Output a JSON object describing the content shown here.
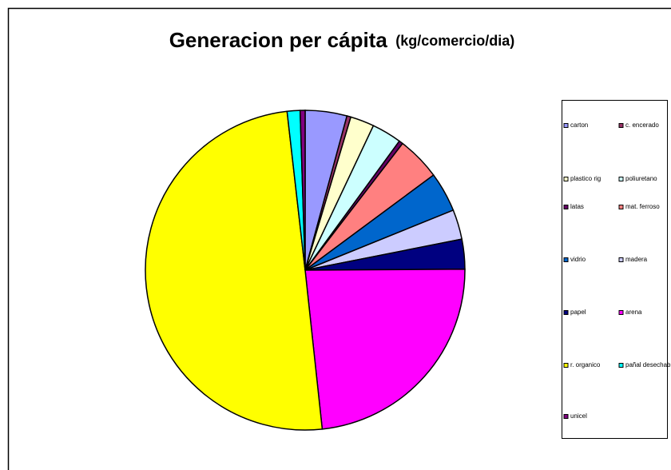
{
  "chart_data": {
    "type": "pie",
    "title": "Generacion per cápita",
    "subtitle": "(kg/comercio/dia)",
    "categories": [
      "carton",
      "c. encerado",
      "plastico rig",
      "poliuretano",
      "latas",
      "mat. ferroso",
      "vidrio",
      "madera",
      "papel",
      "arena",
      "r. organico",
      "pañal desechable",
      "unicel"
    ],
    "values": [
      4.2,
      0.4,
      2.4,
      3,
      0.4,
      4.4,
      4,
      3,
      3,
      23.3,
      49.7,
      1.3,
      0.5
    ],
    "colors": [
      "#9999FF",
      "#993366",
      "#FFFFCC",
      "#CCFFFF",
      "#660066",
      "#FF8080",
      "#0066CC",
      "#CCCCFF",
      "#000080",
      "#FF00FF",
      "#FFFF00",
      "#00FFFF",
      "#800080"
    ],
    "legend": "right"
  }
}
